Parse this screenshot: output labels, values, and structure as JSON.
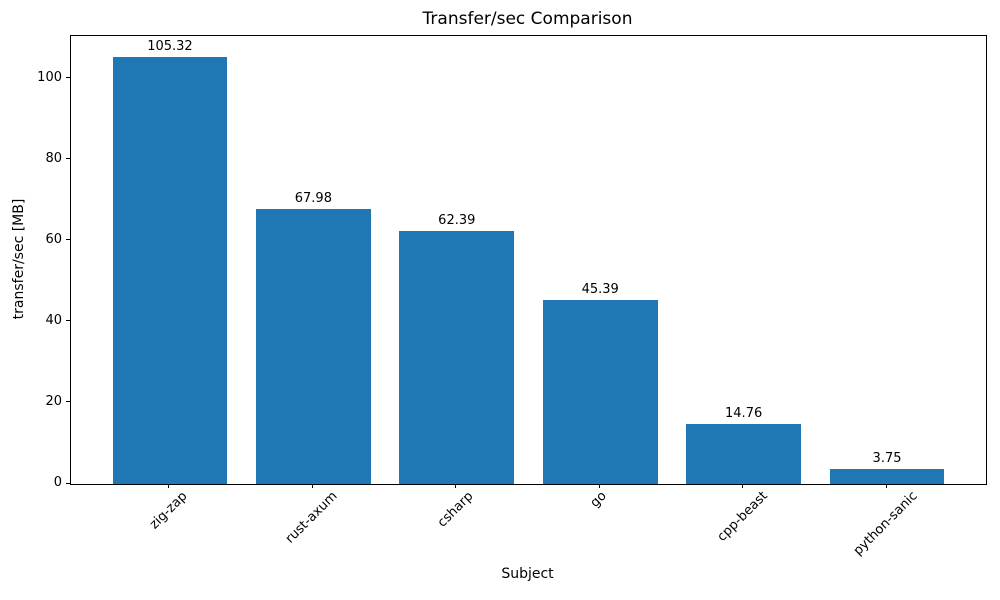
{
  "chart_data": {
    "type": "bar",
    "title": "Transfer/sec Comparison",
    "xlabel": "Subject",
    "ylabel": "transfer/sec [MB]",
    "categories": [
      "zig-zap",
      "rust-axum",
      "csharp",
      "go",
      "cpp-beast",
      "python-sanic"
    ],
    "values": [
      105.32,
      67.98,
      62.39,
      45.39,
      14.76,
      3.75
    ],
    "value_labels": [
      "105.32",
      "67.98",
      "62.39",
      "45.39",
      "14.76",
      "3.75"
    ],
    "ytick_values": [
      0,
      20,
      40,
      60,
      80,
      100
    ],
    "ytick_labels": [
      "0",
      "20",
      "40",
      "60",
      "80",
      "100"
    ],
    "ylim": [
      0,
      110.6
    ],
    "grid": false,
    "legend": null,
    "bar_color": "#1f77b4",
    "spine_color": "#000000",
    "text_color": "#000000",
    "xtick_rotation_deg": 45
  }
}
